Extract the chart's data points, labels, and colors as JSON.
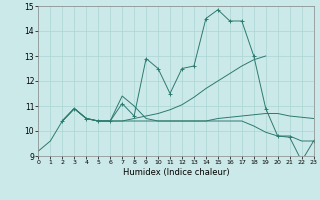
{
  "xlabel": "Humidex (Indice chaleur)",
  "xlim": [
    0,
    23
  ],
  "ylim": [
    9,
    15
  ],
  "yticks": [
    9,
    10,
    11,
    12,
    13,
    14,
    15
  ],
  "xticks": [
    0,
    1,
    2,
    3,
    4,
    5,
    6,
    7,
    8,
    9,
    10,
    11,
    12,
    13,
    14,
    15,
    16,
    17,
    18,
    19,
    20,
    21,
    22,
    23
  ],
  "bg_color": "#cce9e9",
  "grid_color": "#aad4d4",
  "line_color": "#2d7a6e",
  "lines": [
    {
      "x": [
        0,
        1,
        2,
        3,
        4,
        5,
        6,
        7,
        8,
        9,
        10,
        11,
        12,
        13,
        14,
        15,
        16,
        17,
        18,
        19,
        20,
        21,
        22,
        23
      ],
      "y": [
        9.2,
        9.6,
        10.4,
        10.9,
        10.5,
        10.4,
        10.4,
        10.4,
        10.4,
        10.4,
        10.4,
        10.4,
        10.4,
        10.4,
        10.4,
        10.4,
        10.4,
        10.4,
        10.2,
        9.95,
        9.8,
        9.8,
        9.6,
        9.6
      ],
      "marker": false
    },
    {
      "x": [
        2,
        3,
        4,
        5,
        6,
        7,
        8,
        9,
        10,
        11,
        12,
        13,
        14,
        15,
        16,
        17,
        18,
        19,
        20,
        21,
        22,
        23
      ],
      "y": [
        10.4,
        10.9,
        10.5,
        10.4,
        10.4,
        11.1,
        10.6,
        12.9,
        12.5,
        11.5,
        12.5,
        12.6,
        14.5,
        14.85,
        14.4,
        14.4,
        13.0,
        10.9,
        9.8,
        9.75,
        8.8,
        9.6
      ],
      "marker": true
    },
    {
      "x": [
        2,
        3,
        4,
        5,
        6,
        7,
        8,
        9,
        10,
        11,
        12,
        13,
        14,
        15,
        16,
        17,
        18,
        19,
        20,
        21,
        22,
        23
      ],
      "y": [
        10.4,
        10.9,
        10.5,
        10.4,
        10.4,
        11.4,
        11.0,
        10.5,
        10.4,
        10.4,
        10.4,
        10.4,
        10.4,
        10.5,
        10.55,
        10.6,
        10.65,
        10.7,
        10.7,
        10.6,
        10.55,
        10.5
      ],
      "marker": false
    },
    {
      "x": [
        2,
        3,
        4,
        5,
        6,
        7,
        8,
        9,
        10,
        11,
        12,
        13,
        14,
        15,
        16,
        17,
        18,
        19
      ],
      "y": [
        10.4,
        10.9,
        10.5,
        10.4,
        10.4,
        10.4,
        10.5,
        10.6,
        10.7,
        10.85,
        11.05,
        11.35,
        11.7,
        12.0,
        12.3,
        12.6,
        12.85,
        13.0
      ],
      "marker": false
    }
  ]
}
